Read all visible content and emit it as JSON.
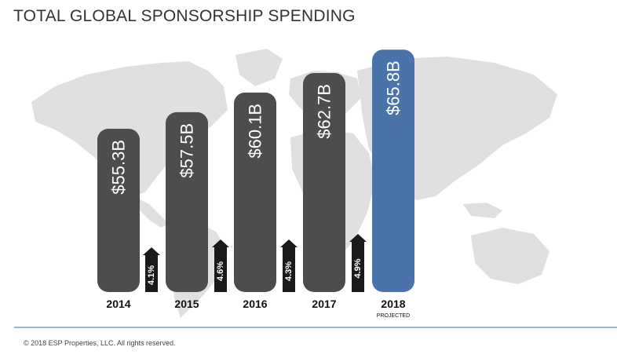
{
  "title": "TOTAL GLOBAL SPONSORSHIP SPENDING",
  "footer": "© 2018 ESP Properties, LLC. All rights reserved.",
  "colors": {
    "bar": "#4d4d4d",
    "projected_bar": "#4a74a9",
    "arrow": "#1a1a1a",
    "map": "#e0e0e0"
  },
  "chart_data": {
    "type": "bar",
    "categories": [
      "2014",
      "2015",
      "2016",
      "2017",
      "2018"
    ],
    "category_sublabels": [
      "",
      "",
      "",
      "",
      "PROJECTED"
    ],
    "values": [
      55.3,
      57.5,
      60.1,
      62.7,
      65.8
    ],
    "value_labels": [
      "$55.3B",
      "$57.5B",
      "$60.1B",
      "$62.7B",
      "$65.8B"
    ],
    "projected": [
      false,
      false,
      false,
      false,
      true
    ],
    "growth_labels": [
      "4.1%",
      "4.6%",
      "4.3%",
      "4.9%"
    ],
    "unit": "B",
    "grid": false
  }
}
